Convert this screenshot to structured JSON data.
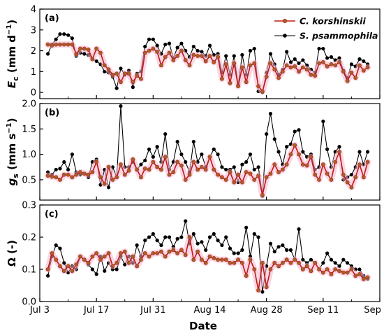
{
  "colors": {
    "korshinskii": "#c01818",
    "korshinskii_marker": "#a0642a",
    "korshinskii_band": "#f4b4cc",
    "psammophila": "#000000",
    "axis": "#000000"
  },
  "chart_data": {
    "type": "line",
    "shared_x": {
      "label": "Date",
      "range": [
        "2019-07-03",
        "2019-09-25"
      ],
      "ticks": [
        "2019-07-03",
        "2019-07-17",
        "2019-07-31",
        "2019-08-14",
        "2019-08-28",
        "2019-09-11",
        "2019-09-25"
      ],
      "tick_labels": [
        "Jul 3",
        "Jul 17",
        "Jul 31",
        "Aug 14",
        "Aug 28",
        "Sep 11",
        "Sep 25"
      ]
    },
    "x": [
      "2019-07-05",
      "2019-07-06",
      "2019-07-07",
      "2019-07-08",
      "2019-07-09",
      "2019-07-10",
      "2019-07-11",
      "2019-07-12",
      "2019-07-13",
      "2019-07-14",
      "2019-07-15",
      "2019-07-16",
      "2019-07-17",
      "2019-07-18",
      "2019-07-19",
      "2019-07-20",
      "2019-07-21",
      "2019-07-22",
      "2019-07-23",
      "2019-07-24",
      "2019-07-25",
      "2019-07-26",
      "2019-07-27",
      "2019-07-28",
      "2019-07-29",
      "2019-07-30",
      "2019-07-31",
      "2019-08-01",
      "2019-08-02",
      "2019-08-03",
      "2019-08-04",
      "2019-08-05",
      "2019-08-06",
      "2019-08-07",
      "2019-08-08",
      "2019-08-09",
      "2019-08-10",
      "2019-08-11",
      "2019-08-12",
      "2019-08-13",
      "2019-08-14",
      "2019-08-15",
      "2019-08-16",
      "2019-08-17",
      "2019-08-18",
      "2019-08-19",
      "2019-08-20",
      "2019-08-21",
      "2019-08-22",
      "2019-08-23",
      "2019-08-24",
      "2019-08-25",
      "2019-08-26",
      "2019-08-27",
      "2019-08-28",
      "2019-08-29",
      "2019-08-30",
      "2019-08-31",
      "2019-09-01",
      "2019-09-02",
      "2019-09-03",
      "2019-09-04",
      "2019-09-05",
      "2019-09-06",
      "2019-09-07",
      "2019-09-08",
      "2019-09-09",
      "2019-09-10",
      "2019-09-11",
      "2019-09-12",
      "2019-09-13",
      "2019-09-14",
      "2019-09-15",
      "2019-09-16",
      "2019-09-17",
      "2019-09-18",
      "2019-09-19",
      "2019-09-20",
      "2019-09-21",
      "2019-09-22"
    ],
    "panels": [
      {
        "label": "(a)",
        "ylabel_main": "E",
        "ylabel_sub": "c",
        "ylabel_unit_pre": " (mm d",
        "ylabel_unit_sup": "−1",
        "ylabel_unit_post": ")",
        "ylim": [
          -0.3,
          4
        ],
        "yticks": [
          0,
          1,
          2,
          3,
          4
        ],
        "ytick_labels": [
          "0",
          "1",
          "2",
          "3",
          "4"
        ],
        "legend": {
          "position": "top-right"
        },
        "series": [
          {
            "name": "C. korshinskii",
            "band": true,
            "values": [
              2.3,
              2.25,
              2.3,
              2.3,
              2.3,
              2.3,
              2.3,
              1.85,
              2.1,
              2.1,
              2.05,
              1.6,
              2.1,
              1.9,
              1.3,
              1.1,
              0.85,
              0.9,
              0.5,
              0.9,
              0.9,
              0.5,
              0.8,
              0.65,
              1.9,
              2.0,
              2.1,
              1.95,
              1.3,
              1.7,
              1.9,
              1.55,
              1.75,
              2.0,
              1.55,
              1.3,
              1.8,
              1.75,
              1.75,
              1.5,
              1.75,
              1.45,
              1.7,
              0.65,
              1.35,
              0.45,
              1.4,
              0.3,
              1.2,
              0.5,
              1.3,
              1.4,
              0.3,
              0.05,
              0.75,
              1.4,
              1.1,
              0.7,
              1.0,
              1.3,
              1.2,
              1.25,
              1.0,
              1.2,
              1.1,
              0.85,
              0.8,
              1.4,
              1.45,
              1.25,
              1.35,
              1.3,
              1.45,
              1.0,
              0.55,
              0.95,
              0.7,
              1.3,
              1.05,
              1.2
            ]
          },
          {
            "name": "S. psammophila",
            "band": false,
            "values": [
              1.85,
              2.3,
              2.55,
              2.8,
              2.8,
              2.75,
              2.6,
              1.75,
              1.9,
              1.85,
              1.8,
              1.6,
              1.5,
              1.35,
              1.0,
              0.95,
              0.75,
              0.2,
              1.15,
              0.85,
              1.05,
              0.25,
              0.9,
              1.0,
              2.2,
              2.55,
              2.55,
              2.25,
              1.85,
              2.3,
              2.35,
              1.65,
              2.15,
              2.35,
              2.0,
              1.7,
              2.2,
              2.0,
              1.95,
              1.75,
              2.25,
              1.8,
              1.85,
              0.95,
              1.75,
              0.85,
              1.75,
              0.35,
              1.8,
              0.85,
              2.0,
              2.1,
              0.05,
              0.0,
              0.95,
              1.85,
              1.35,
              0.85,
              1.1,
              1.95,
              1.45,
              1.6,
              1.4,
              1.55,
              1.3,
              1.1,
              0.95,
              2.1,
              2.1,
              1.65,
              1.7,
              1.55,
              1.65,
              1.05,
              0.7,
              1.35,
              1.25,
              1.6,
              1.5,
              1.35
            ]
          }
        ]
      },
      {
        "label": "(b)",
        "ylabel_main": "g",
        "ylabel_sub": "s",
        "ylabel_unit_pre": " (mm s",
        "ylabel_unit_sup": "−1",
        "ylabel_unit_post": ")",
        "ylim": [
          0.1,
          2.0
        ],
        "yticks": [
          0.5,
          1.0,
          1.5,
          2.0
        ],
        "ytick_labels": [
          "0.5",
          "1.0",
          "1.5",
          "2.0"
        ],
        "series": [
          {
            "name": "C. korshinskii",
            "band": true,
            "values": [
              0.58,
              0.56,
              0.55,
              0.5,
              0.6,
              0.6,
              0.55,
              0.6,
              0.65,
              0.62,
              0.6,
              0.65,
              0.85,
              0.55,
              0.42,
              0.75,
              0.5,
              0.55,
              0.8,
              0.6,
              0.68,
              0.9,
              0.7,
              0.55,
              0.72,
              0.7,
              0.85,
              0.75,
              0.7,
              0.95,
              0.6,
              0.65,
              0.85,
              0.78,
              0.5,
              0.6,
              0.85,
              0.7,
              0.75,
              0.7,
              0.95,
              0.7,
              0.6,
              0.55,
              0.5,
              0.65,
              0.45,
              0.6,
              0.45,
              0.65,
              0.62,
              0.5,
              0.58,
              0.2,
              0.55,
              0.62,
              0.8,
              0.65,
              0.7,
              0.8,
              1.0,
              1.18,
              1.0,
              0.8,
              0.78,
              0.95,
              0.6,
              0.5,
              0.8,
              0.62,
              0.5,
              0.85,
              1.05,
              0.6,
              0.45,
              0.35,
              0.55,
              0.8,
              0.55,
              0.85
            ]
          },
          {
            "name": "S. psammophila",
            "band": false,
            "values": [
              0.65,
              0.6,
              0.7,
              0.72,
              0.85,
              0.7,
              1.0,
              0.65,
              0.6,
              0.62,
              0.55,
              0.85,
              0.9,
              0.4,
              0.7,
              0.35,
              0.75,
              0.55,
              1.95,
              0.75,
              0.75,
              0.85,
              0.7,
              0.8,
              0.88,
              1.1,
              0.95,
              1.15,
              0.85,
              1.4,
              0.7,
              0.85,
              1.25,
              1.0,
              0.85,
              0.65,
              1.25,
              0.85,
              1.0,
              0.75,
              0.95,
              1.1,
              1.0,
              0.75,
              0.7,
              0.7,
              0.75,
              0.45,
              0.8,
              0.85,
              1.0,
              0.7,
              0.75,
              0.18,
              1.4,
              1.8,
              1.3,
              1.05,
              0.8,
              1.15,
              1.2,
              1.45,
              1.48,
              1.05,
              0.95,
              1.0,
              0.7,
              0.75,
              1.65,
              1.1,
              0.75,
              1.05,
              1.15,
              0.5,
              0.55,
              0.6,
              0.75,
              1.05,
              0.8,
              1.05
            ]
          }
        ]
      },
      {
        "label": "(c)",
        "ylabel_main": "Ω (-)",
        "ylabel_sub": "",
        "ylabel_unit_pre": "",
        "ylabel_unit_sup": "",
        "ylabel_unit_post": "",
        "ylim": [
          0.0,
          0.3
        ],
        "yticks": [
          0.0,
          0.1,
          0.2,
          0.3
        ],
        "ytick_labels": [
          "0.0",
          "0.1",
          "0.2",
          "0.3"
        ],
        "series": [
          {
            "name": "C. korshinskii",
            "band": true,
            "values": [
              0.1,
              0.15,
              0.13,
              0.11,
              0.095,
              0.11,
              0.095,
              0.115,
              0.14,
              0.13,
              0.12,
              0.14,
              0.15,
              0.13,
              0.14,
              0.15,
              0.11,
              0.12,
              0.15,
              0.155,
              0.12,
              0.14,
              0.11,
              0.13,
              0.15,
              0.14,
              0.15,
              0.15,
              0.155,
              0.14,
              0.155,
              0.16,
              0.15,
              0.16,
              0.145,
              0.2,
              0.13,
              0.155,
              0.13,
              0.12,
              0.14,
              0.135,
              0.13,
              0.13,
              0.13,
              0.12,
              0.12,
              0.13,
              0.12,
              0.08,
              0.13,
              0.1,
              0.035,
              0.12,
              0.045,
              0.1,
              0.12,
              0.11,
              0.12,
              0.13,
              0.12,
              0.13,
              0.12,
              0.1,
              0.11,
              0.095,
              0.12,
              0.1,
              0.09,
              0.1,
              0.085,
              0.1,
              0.095,
              0.09,
              0.09,
              0.1,
              0.08,
              0.085,
              0.07,
              0.075
            ]
          },
          {
            "name": "S. psammophila",
            "band": false,
            "values": [
              0.08,
              0.14,
              0.175,
              0.165,
              0.12,
              0.09,
              0.11,
              0.1,
              0.14,
              0.13,
              0.115,
              0.1,
              0.085,
              0.14,
              0.095,
              0.12,
              0.1,
              0.1,
              0.14,
              0.115,
              0.14,
              0.12,
              0.175,
              0.14,
              0.19,
              0.2,
              0.21,
              0.19,
              0.175,
              0.2,
              0.2,
              0.17,
              0.195,
              0.2,
              0.25,
              0.18,
              0.21,
              0.18,
              0.185,
              0.16,
              0.2,
              0.21,
              0.19,
              0.175,
              0.2,
              0.165,
              0.15,
              0.15,
              0.16,
              0.23,
              0.14,
              0.21,
              0.2,
              0.03,
              0.11,
              0.18,
              0.155,
              0.17,
              0.175,
              0.16,
              0.16,
              0.13,
              0.225,
              0.13,
              0.12,
              0.13,
              0.12,
              0.1,
              0.12,
              0.15,
              0.13,
              0.12,
              0.11,
              0.13,
              0.12,
              0.11,
              0.1,
              0.1,
              0.08,
              0.07
            ]
          }
        ]
      }
    ]
  }
}
